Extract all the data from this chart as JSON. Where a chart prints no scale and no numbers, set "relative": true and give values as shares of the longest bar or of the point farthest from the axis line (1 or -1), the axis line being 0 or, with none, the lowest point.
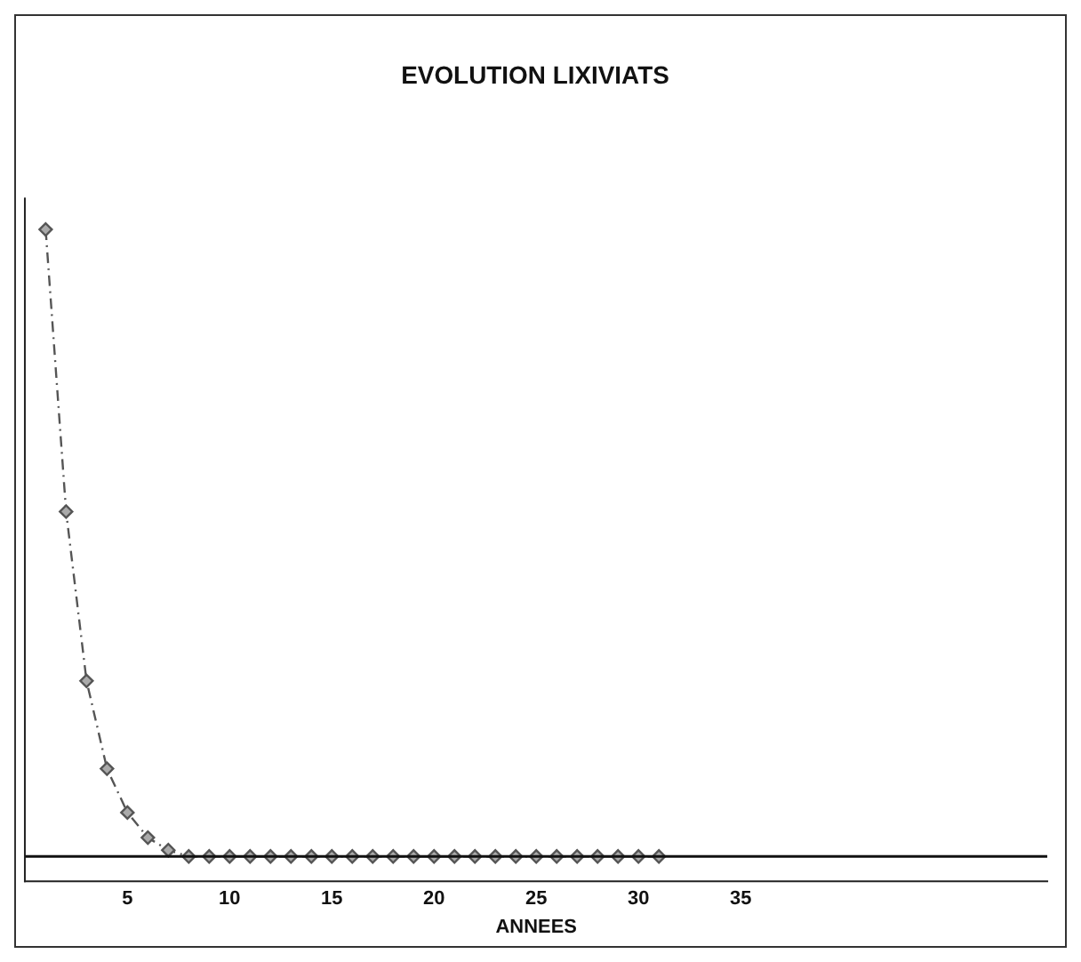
{
  "chart_data": {
    "type": "line",
    "title": "EVOLUTION LIXIVIATS",
    "xlabel": "ANNEES",
    "relative": true,
    "x": [
      1,
      2,
      3,
      4,
      5,
      6,
      7,
      8,
      9,
      10,
      11,
      12,
      13,
      14,
      15,
      16,
      17,
      18,
      19,
      20,
      21,
      22,
      23,
      24,
      25,
      26,
      27,
      28,
      29,
      30,
      31
    ],
    "series": [
      {
        "color": "#555555",
        "values": [
          1,
          0.55,
          0.28,
          0.14,
          0.07,
          0.03,
          0.01,
          0,
          0,
          0,
          0,
          0,
          0,
          0,
          0,
          0,
          0,
          0,
          0,
          0,
          0,
          0,
          0,
          0,
          0,
          0,
          0,
          0,
          0,
          0,
          0
        ]
      }
    ],
    "xlim": [
      0,
      50
    ],
    "xticks": [
      5,
      10,
      15,
      20,
      25,
      30,
      35
    ],
    "grid": false,
    "legend": false,
    "marker": "diamond",
    "line_style": "dashed"
  }
}
